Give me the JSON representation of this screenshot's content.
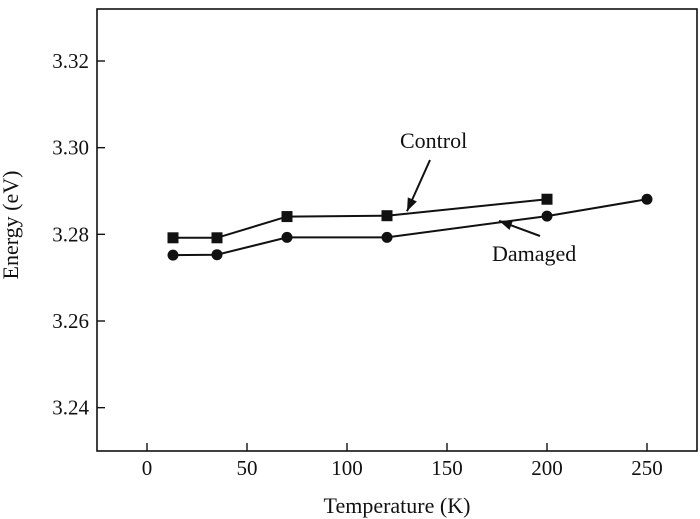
{
  "chart_data": {
    "type": "line",
    "title": "",
    "xlabel": "Temperature (K)",
    "ylabel": "Energy (eV)",
    "xlim": [
      -25,
      275
    ],
    "ylim": [
      3.23,
      3.332
    ],
    "x_ticks": [
      0,
      50,
      100,
      150,
      200,
      250
    ],
    "y_ticks": [
      3.24,
      3.26,
      3.28,
      3.3,
      3.32
    ],
    "x_tick_labels": [
      "0",
      "50",
      "100",
      "150",
      "200",
      "250"
    ],
    "y_tick_labels": [
      "3.24",
      "3.26",
      "3.28",
      "3.30",
      "3.32"
    ],
    "grid": false,
    "legend": "none",
    "series": [
      {
        "name": "Control",
        "marker": "square",
        "color": "#111111",
        "x": [
          13,
          35,
          70,
          120,
          200
        ],
        "y": [
          3.2792,
          3.2792,
          3.2841,
          3.2843,
          3.2881
        ]
      },
      {
        "name": "Damaged",
        "marker": "circle",
        "color": "#111111",
        "x": [
          13,
          35,
          70,
          120,
          200,
          250
        ],
        "y": [
          3.2752,
          3.2753,
          3.2793,
          3.2793,
          3.2842,
          3.2881
        ]
      }
    ],
    "annotations": [
      {
        "text": "Control",
        "series": "Control",
        "points_to_x": 130,
        "points_to_y": 3.2844
      },
      {
        "text": "Damaged",
        "series": "Damaged",
        "points_to_x": 175,
        "points_to_y": 3.2822
      }
    ]
  }
}
